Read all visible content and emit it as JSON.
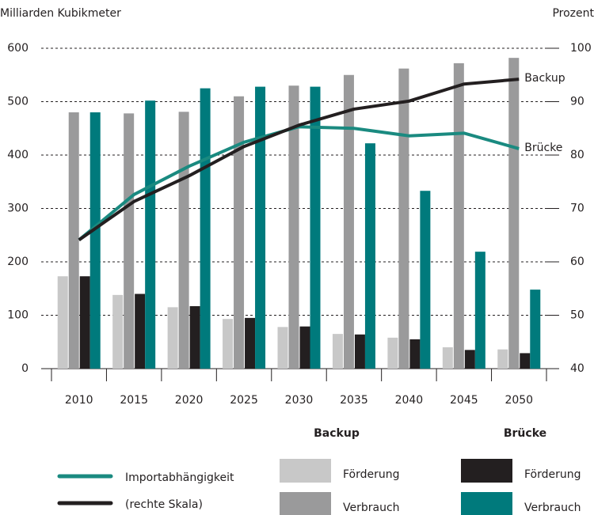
{
  "chart_data": {
    "type": "bar",
    "ylabel": "Milliarden Kubikmeter",
    "y2label": "Prozent",
    "categories": [
      "2010",
      "2015",
      "2020",
      "2025",
      "2030",
      "2035",
      "2040",
      "2045",
      "2050"
    ],
    "ylim": [
      0,
      600
    ],
    "yticks": [
      0,
      100,
      200,
      300,
      400,
      500,
      600
    ],
    "y2lim": [
      40,
      100
    ],
    "y2ticks": [
      40,
      50,
      60,
      70,
      80,
      90,
      100
    ],
    "grid": true,
    "series": [
      {
        "group": "Backup",
        "name": "Förderung",
        "color": "#c8c8c8",
        "values": [
          173,
          138,
          115,
          93,
          78,
          65,
          58,
          40,
          36
        ]
      },
      {
        "group": "Backup",
        "name": "Verbrauch",
        "color": "#9a9a9b",
        "values": [
          480,
          478,
          481,
          510,
          530,
          550,
          562,
          572,
          582
        ]
      },
      {
        "group": "Brücke",
        "name": "Förderung",
        "color": "#231f20",
        "values": [
          173,
          140,
          117,
          95,
          79,
          64,
          55,
          35,
          29
        ]
      },
      {
        "group": "Brücke",
        "name": "Verbrauch",
        "color": "#007a7c",
        "values": [
          480,
          502,
          525,
          528,
          528,
          422,
          333,
          219,
          148
        ]
      }
    ],
    "lines": [
      {
        "type": "line",
        "name": "Importabhängigkeit",
        "end_label": "Brücke",
        "color": "#1a8a80",
        "axis": "y2",
        "values": [
          64.1,
          72.6,
          77.9,
          82.4,
          85.3,
          85.0,
          83.6,
          84.1,
          81.2
        ]
      },
      {
        "type": "line",
        "name": "(rechte Skala)",
        "end_label": "Backup",
        "color": "#231f20",
        "axis": "y2",
        "values": [
          64.1,
          71.3,
          76.1,
          81.6,
          85.6,
          88.6,
          90.1,
          93.3,
          94.2
        ]
      }
    ]
  }
}
